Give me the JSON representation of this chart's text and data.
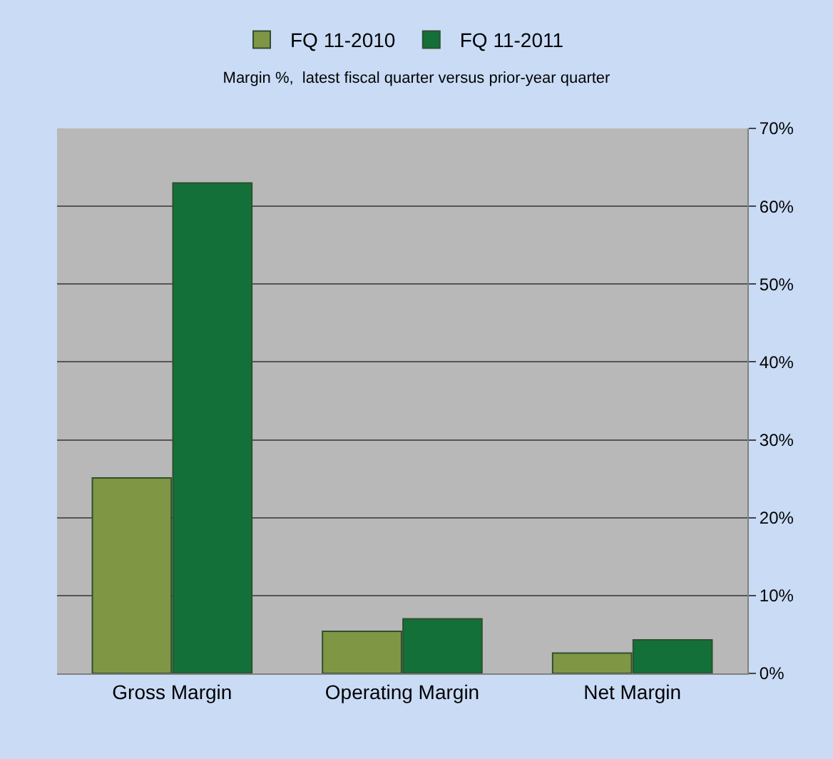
{
  "chart_data": {
    "type": "bar",
    "title": "Margin %,  latest fiscal quarter versus prior-year quarter",
    "categories": [
      "Gross Margin",
      "Operating Margin",
      "Net Margin"
    ],
    "series": [
      {
        "name": "FQ 11-2010",
        "color": "#7f9645",
        "values": [
          25.1,
          5.4,
          2.6
        ]
      },
      {
        "name": "FQ 11-2011",
        "color": "#127038",
        "values": [
          63.0,
          7.0,
          4.3
        ]
      }
    ],
    "ylim": [
      0,
      70
    ],
    "yticks": [
      {
        "value": 0,
        "label": "0%"
      },
      {
        "value": 10,
        "label": "10%"
      },
      {
        "value": 20,
        "label": "20%"
      },
      {
        "value": 30,
        "label": "30%"
      },
      {
        "value": 40,
        "label": "40%"
      },
      {
        "value": 50,
        "label": "50%"
      },
      {
        "value": 60,
        "label": "60%"
      },
      {
        "value": 70,
        "label": "70%"
      }
    ],
    "grid": "y",
    "legend": "top"
  }
}
